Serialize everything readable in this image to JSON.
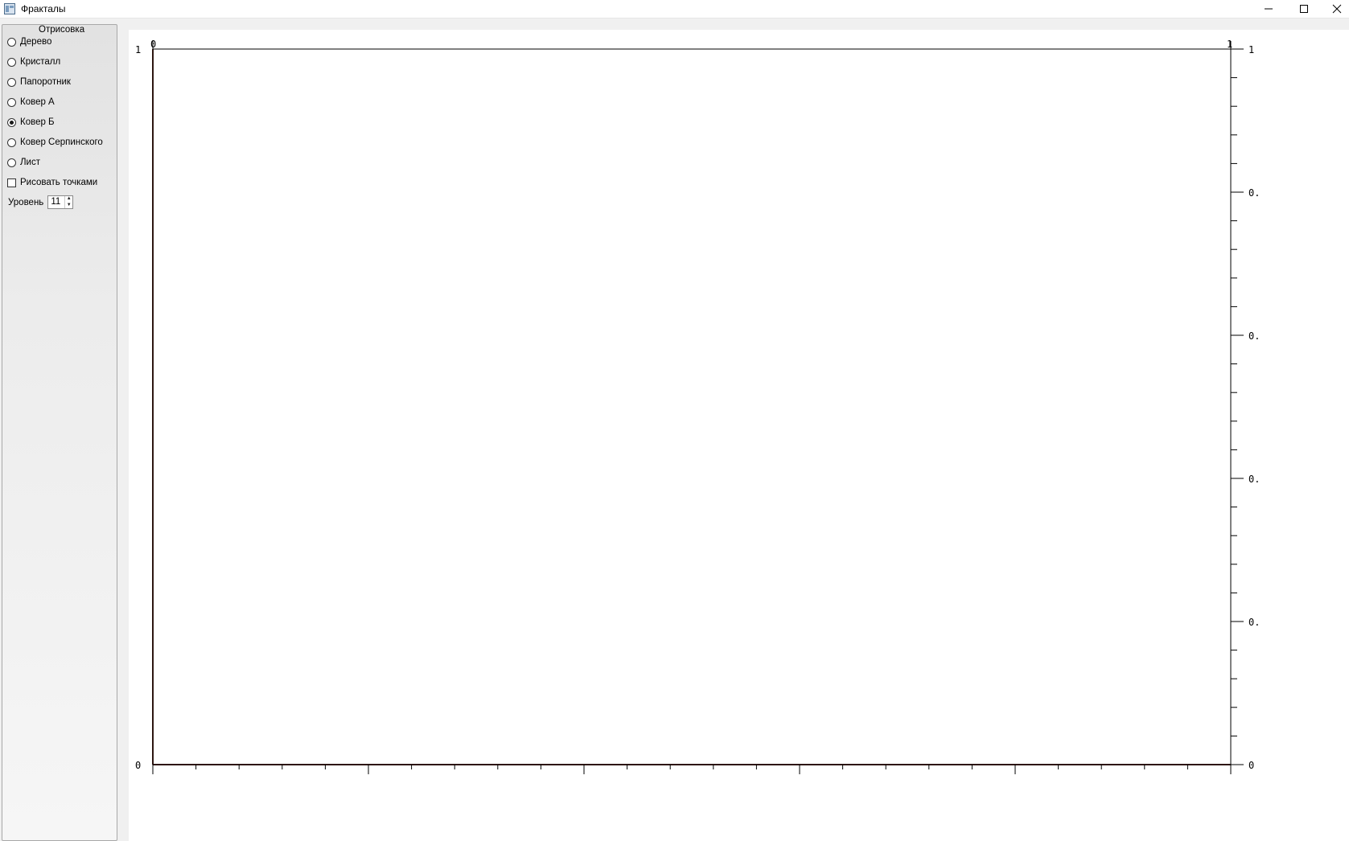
{
  "window": {
    "title": "Фракталы",
    "icons": [
      "app-icon",
      "minimize-icon",
      "maximize-icon",
      "close-icon"
    ]
  },
  "panel": {
    "group_title": "Отрисовка",
    "options": [
      {
        "label": "Дерево",
        "selected": false
      },
      {
        "label": "Кристалл",
        "selected": false
      },
      {
        "label": "Папоротник",
        "selected": false
      },
      {
        "label": "Ковер А",
        "selected": false
      },
      {
        "label": "Ковер Б",
        "selected": true
      },
      {
        "label": "Ковер Серпинского",
        "selected": false
      },
      {
        "label": "Лист",
        "selected": false
      }
    ],
    "dots_checkbox": {
      "label": "Рисовать точками",
      "checked": false
    },
    "level": {
      "label": "Уровень",
      "value": "11"
    }
  },
  "plot": {
    "fractal_color": "#5a2d22",
    "top_left_label": "0",
    "top_right_label": "1",
    "left_top_label": "1",
    "left_bottom_label": "0",
    "right_labels": [
      "1",
      "0.",
      "0.",
      "0.",
      "0.",
      "0"
    ]
  }
}
